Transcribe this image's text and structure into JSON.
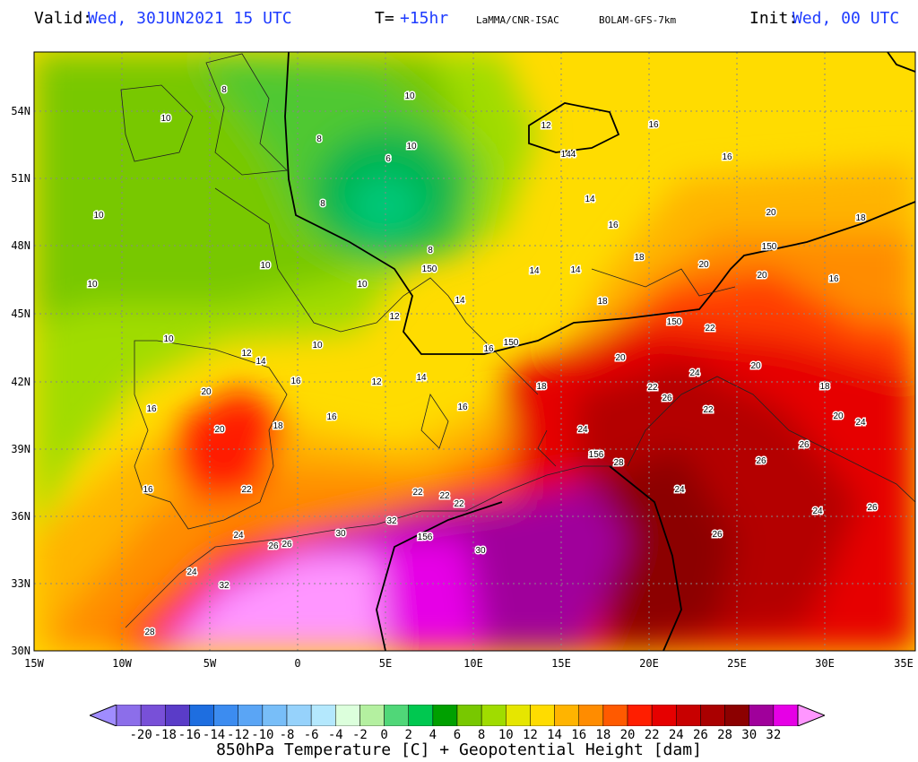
{
  "header": {
    "valid_label": "Valid:",
    "valid_value": "Wed, 30JUN2021  15 UTC",
    "t_label": "T=",
    "t_value": "+15hr",
    "source": "LaMMA/CNR-ISAC",
    "model": "BOLAM-GFS-7km",
    "init_label": "Init:",
    "init_value": "Wed, 00 UTC"
  },
  "axes": {
    "lat_labels": [
      "54N",
      "51N",
      "48N",
      "45N",
      "42N",
      "39N",
      "36N",
      "33N",
      "30N"
    ],
    "lon_labels": [
      "15W",
      "10W",
      "5W",
      "0",
      "5E",
      "10E",
      "15E",
      "20E",
      "25E",
      "30E",
      "35E"
    ]
  },
  "colorbar": {
    "labels": [
      "-20",
      "-18",
      "-16",
      "-14",
      "-12",
      "-10",
      "-8",
      "-6",
      "-4",
      "-2",
      "0",
      "2",
      "4",
      "6",
      "8",
      "10",
      "12",
      "14",
      "16",
      "18",
      "20",
      "22",
      "24",
      "26",
      "28",
      "30",
      "32"
    ],
    "colors": [
      "#a08cff",
      "#8c6eea",
      "#7850d8",
      "#5a3cc8",
      "#1e6ee0",
      "#3c8cf0",
      "#5aa5f5",
      "#78bef8",
      "#96d2fb",
      "#b4e8fd",
      "#dcffdc",
      "#b4f0a0",
      "#50d778",
      "#00c850",
      "#00a000",
      "#78c800",
      "#a0dc00",
      "#e6e600",
      "#ffdc00",
      "#ffb400",
      "#ff8c00",
      "#ff5a00",
      "#ff1e00",
      "#e60000",
      "#c80000",
      "#aa0000",
      "#8c0000",
      "#a0009b",
      "#e600e6",
      "#ff96ff"
    ],
    "caption": "850hPa Temperature [C] + Geopotential Height [dam]"
  },
  "temperature_labels": [
    "8",
    "10",
    "10",
    "10",
    "10",
    "10",
    "10",
    "10",
    "10",
    "10",
    "12",
    "12",
    "12",
    "12",
    "14",
    "14",
    "14",
    "14",
    "14",
    "14",
    "16",
    "16",
    "16",
    "16",
    "16",
    "16",
    "16",
    "16",
    "16",
    "16",
    "18",
    "18",
    "18",
    "18",
    "18",
    "18",
    "20",
    "20",
    "20",
    "20",
    "20",
    "20",
    "20",
    "20",
    "22",
    "22",
    "22",
    "22",
    "22",
    "22",
    "22",
    "24",
    "24",
    "24",
    "24",
    "24",
    "24",
    "24",
    "26",
    "26",
    "26",
    "26",
    "26",
    "26",
    "26",
    "28",
    "28",
    "30",
    "30",
    "32",
    "32",
    "6",
    "8",
    "8",
    "8",
    "150",
    "150",
    "150",
    "150",
    "144",
    "156",
    "156"
  ]
}
